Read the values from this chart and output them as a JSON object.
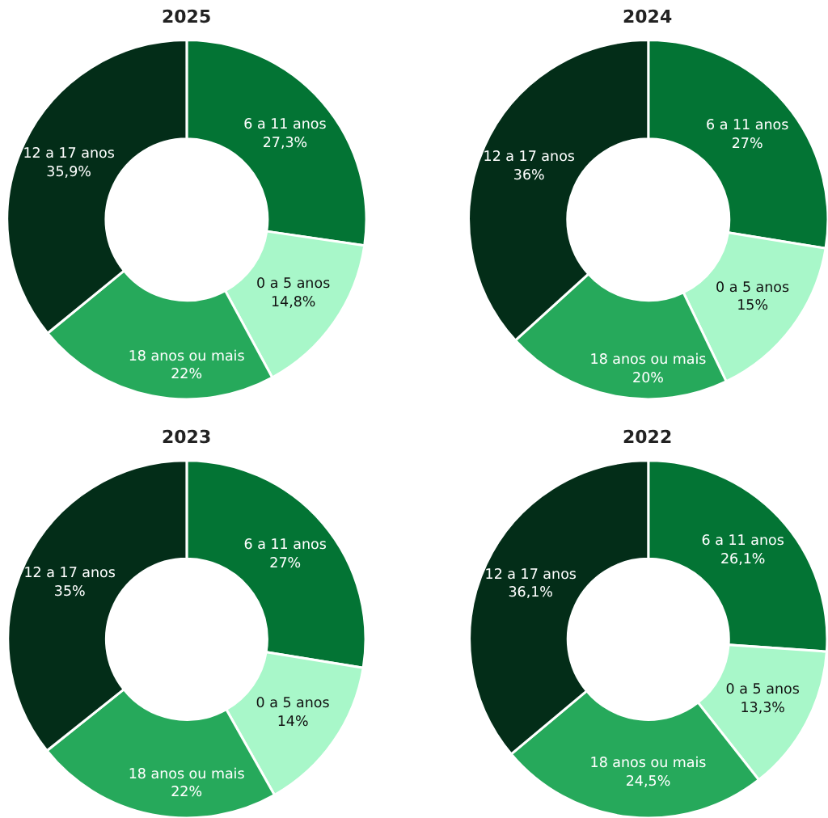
{
  "chart_data": [
    {
      "type": "donut",
      "title": "2025",
      "categories": [
        "6 a 11 anos",
        "0 a 5 anos",
        "18 anos ou mais",
        "12 a 17 anos"
      ],
      "values": [
        27.3,
        14.8,
        22,
        35.9
      ],
      "value_labels": [
        "27,3%",
        "14,8%",
        "22%",
        "35,9%"
      ],
      "colors": [
        "#037434",
        "#a8f7c9",
        "#26a95b",
        "#032d18"
      ]
    },
    {
      "type": "donut",
      "title": "2024",
      "categories": [
        "6 a 11 anos",
        "0 a 5 anos",
        "18 anos ou mais",
        "12 a 17 anos"
      ],
      "values": [
        27,
        15,
        20,
        36
      ],
      "value_labels": [
        "27%",
        "15%",
        "20%",
        "36%"
      ],
      "colors": [
        "#037434",
        "#a8f7c9",
        "#26a95b",
        "#032d18"
      ]
    },
    {
      "type": "donut",
      "title": "2023",
      "categories": [
        "6 a 11 anos",
        "0 a 5 anos",
        "18 anos ou mais",
        "12 a 17 anos"
      ],
      "values": [
        27,
        14,
        22,
        35
      ],
      "value_labels": [
        "27%",
        "14%",
        "22%",
        "35%"
      ],
      "colors": [
        "#037434",
        "#a8f7c9",
        "#26a95b",
        "#032d18"
      ]
    },
    {
      "type": "donut",
      "title": "2022",
      "categories": [
        "6 a 11 anos",
        "0 a 5 anos",
        "18 anos ou mais",
        "12 a 17 anos"
      ],
      "values": [
        26.1,
        13.3,
        24.5,
        36.1
      ],
      "value_labels": [
        "26,1%",
        "13,3%",
        "24,5%",
        "36,1%"
      ],
      "colors": [
        "#037434",
        "#a8f7c9",
        "#26a95b",
        "#032d18"
      ]
    }
  ]
}
